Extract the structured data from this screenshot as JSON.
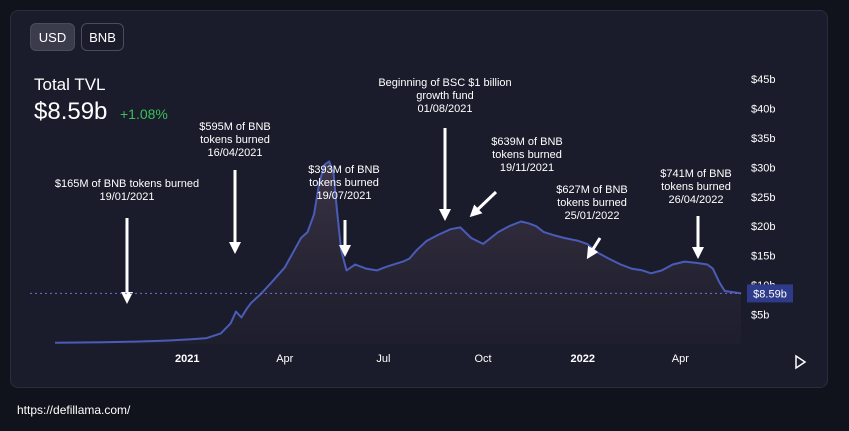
{
  "toggles": {
    "usd": "USD",
    "bnb": "BNB"
  },
  "header": {
    "label": "Total TVL",
    "value": "$8.59b",
    "change": "+1.08%"
  },
  "footer": {
    "url": "https://defillama.com/"
  },
  "colors": {
    "line": "#4a5bb8",
    "change_positive": "#3bbf5a",
    "background": "#1a1c2b"
  },
  "chart_data": {
    "type": "area",
    "ylim": [
      0,
      45
    ],
    "y_unit": "b",
    "y_ticks": [
      {
        "value": 5,
        "label": "$5b"
      },
      {
        "value": 10,
        "label": "$10b"
      },
      {
        "value": 15,
        "label": "$15b"
      },
      {
        "value": 20,
        "label": "$20b"
      },
      {
        "value": 25,
        "label": "$25b"
      },
      {
        "value": 30,
        "label": "$30b"
      },
      {
        "value": 35,
        "label": "$35b"
      },
      {
        "value": 40,
        "label": "$40b"
      },
      {
        "value": 45,
        "label": "$45b"
      }
    ],
    "x_ticks": [
      {
        "date": "2021-01-01",
        "label": "2021",
        "bold": true
      },
      {
        "date": "2021-04-01",
        "label": "Apr",
        "bold": false
      },
      {
        "date": "2021-07-01",
        "label": "Jul",
        "bold": false
      },
      {
        "date": "2021-10-01",
        "label": "Oct",
        "bold": false
      },
      {
        "date": "2022-01-01",
        "label": "2022",
        "bold": true
      },
      {
        "date": "2022-04-01",
        "label": "Apr",
        "bold": false
      }
    ],
    "current_value": 8.59,
    "current_label": "$8.59b",
    "series": [
      {
        "points": [
          [
            "2020-09-01",
            0.2
          ],
          [
            "2020-10-15",
            0.3
          ],
          [
            "2020-11-15",
            0.4
          ],
          [
            "2020-12-15",
            0.6
          ],
          [
            "2021-01-05",
            0.8
          ],
          [
            "2021-01-19",
            1.0
          ],
          [
            "2021-02-01",
            1.8
          ],
          [
            "2021-02-10",
            3.5
          ],
          [
            "2021-02-15",
            5.5
          ],
          [
            "2021-02-20",
            4.5
          ],
          [
            "2021-02-25",
            6.0
          ],
          [
            "2021-03-01",
            7.0
          ],
          [
            "2021-03-10",
            8.5
          ],
          [
            "2021-03-20",
            10.5
          ],
          [
            "2021-04-01",
            13.0
          ],
          [
            "2021-04-10",
            16.0
          ],
          [
            "2021-04-16",
            18.0
          ],
          [
            "2021-04-22",
            19.0
          ],
          [
            "2021-04-28",
            22.0
          ],
          [
            "2021-05-03",
            27.5
          ],
          [
            "2021-05-08",
            30.5
          ],
          [
            "2021-05-12",
            31.0
          ],
          [
            "2021-05-16",
            29.0
          ],
          [
            "2021-05-19",
            23.0
          ],
          [
            "2021-05-23",
            16.0
          ],
          [
            "2021-05-28",
            12.5
          ],
          [
            "2021-06-05",
            13.5
          ],
          [
            "2021-06-15",
            12.8
          ],
          [
            "2021-06-25",
            12.5
          ],
          [
            "2021-07-05",
            13.2
          ],
          [
            "2021-07-19",
            14.0
          ],
          [
            "2021-07-25",
            14.5
          ],
          [
            "2021-08-01",
            16.0
          ],
          [
            "2021-08-10",
            17.5
          ],
          [
            "2021-08-20",
            18.5
          ],
          [
            "2021-09-01",
            19.5
          ],
          [
            "2021-09-10",
            19.8
          ],
          [
            "2021-09-20",
            18.0
          ],
          [
            "2021-10-01",
            17.0
          ],
          [
            "2021-10-08",
            18.0
          ],
          [
            "2021-10-15",
            19.0
          ],
          [
            "2021-10-25",
            20.0
          ],
          [
            "2021-11-05",
            20.8
          ],
          [
            "2021-11-12",
            20.5
          ],
          [
            "2021-11-19",
            20.0
          ],
          [
            "2021-11-26",
            19.0
          ],
          [
            "2021-12-05",
            18.5
          ],
          [
            "2021-12-15",
            18.0
          ],
          [
            "2021-12-28",
            17.5
          ],
          [
            "2022-01-05",
            17.0
          ],
          [
            "2022-01-15",
            15.5
          ],
          [
            "2022-01-25",
            14.5
          ],
          [
            "2022-02-05",
            13.5
          ],
          [
            "2022-02-15",
            12.8
          ],
          [
            "2022-02-25",
            12.5
          ],
          [
            "2022-03-05",
            12.0
          ],
          [
            "2022-03-15",
            12.5
          ],
          [
            "2022-03-25",
            13.5
          ],
          [
            "2022-04-05",
            14.0
          ],
          [
            "2022-04-15",
            13.8
          ],
          [
            "2022-04-26",
            13.5
          ],
          [
            "2022-05-01",
            12.8
          ],
          [
            "2022-05-07",
            10.5
          ],
          [
            "2022-05-12",
            9.0
          ],
          [
            "2022-05-20",
            8.8
          ],
          [
            "2022-05-27",
            8.59
          ]
        ]
      }
    ],
    "annotations": [
      {
        "date": "2021-01-19",
        "lines": [
          "$165M of BNB tokens burned",
          "19/01/2021"
        ],
        "arrow": "down"
      },
      {
        "date": "2021-04-16",
        "lines": [
          "$595M of BNB",
          "tokens burned",
          "16/04/2021"
        ],
        "arrow": "down"
      },
      {
        "date": "2021-07-19",
        "lines": [
          "$393M of BNB",
          "tokens burned",
          "19/07/2021"
        ],
        "arrow": "down"
      },
      {
        "date": "2021-08-01",
        "lines": [
          "Beginning of BSC $1 billion",
          "growth fund",
          "01/08/2021"
        ],
        "arrow": "down"
      },
      {
        "date": "2021-11-19",
        "lines": [
          "$639M of BNB",
          "tokens burned",
          "19/11/2021"
        ],
        "arrow": "diag"
      },
      {
        "date": "2022-01-25",
        "lines": [
          "$627M of BNB",
          "tokens burned",
          "25/01/2022"
        ],
        "arrow": "diag"
      },
      {
        "date": "2022-04-26",
        "lines": [
          "$741M of BNB",
          "tokens burned",
          "26/04/2022"
        ],
        "arrow": "down"
      }
    ]
  }
}
